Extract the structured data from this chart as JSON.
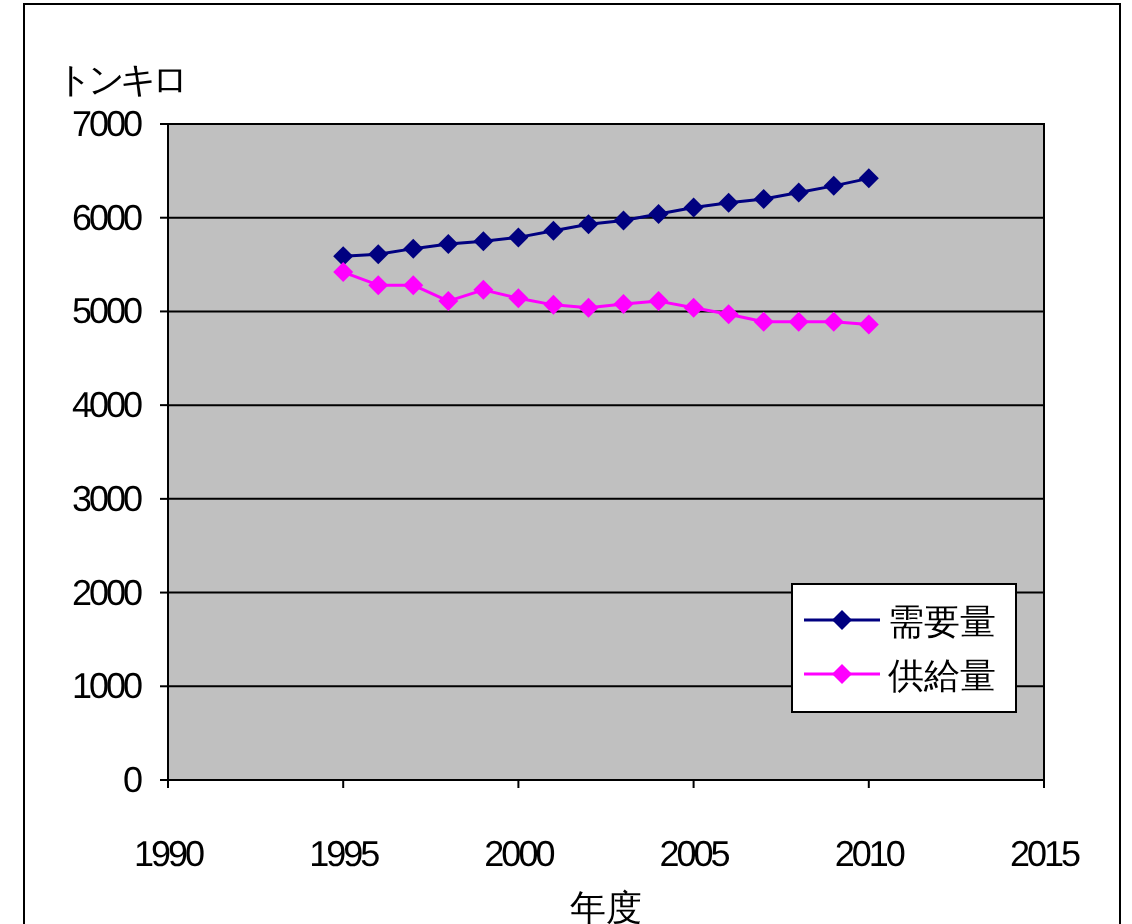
{
  "chart_data": {
    "type": "line",
    "xlabel": "年度",
    "ylabel": "トンキロ",
    "x": [
      1995,
      1996,
      1997,
      1998,
      1999,
      2000,
      2001,
      2002,
      2003,
      2004,
      2005,
      2006,
      2007,
      2008,
      2009,
      2010
    ],
    "series": [
      {
        "name": "需要量",
        "color": "#000080",
        "values": [
          5590,
          5610,
          5670,
          5720,
          5750,
          5790,
          5860,
          5930,
          5970,
          6040,
          6110,
          6160,
          6200,
          6270,
          6340,
          6420
        ]
      },
      {
        "name": "供給量",
        "color": "#ff00ff",
        "values": [
          5420,
          5280,
          5280,
          5110,
          5230,
          5140,
          5070,
          5040,
          5080,
          5110,
          5040,
          4970,
          4890,
          4890,
          4890,
          4860
        ]
      }
    ],
    "xlim": [
      1990,
      2015
    ],
    "xticks": [
      1990,
      1995,
      2000,
      2005,
      2010,
      2015
    ],
    "ylim": [
      0,
      7000
    ],
    "yticks": [
      0,
      1000,
      2000,
      3000,
      4000,
      5000,
      6000,
      7000
    ],
    "grid": "y",
    "legend": "bottom right",
    "marker": "diamond",
    "line_style": "solid"
  }
}
